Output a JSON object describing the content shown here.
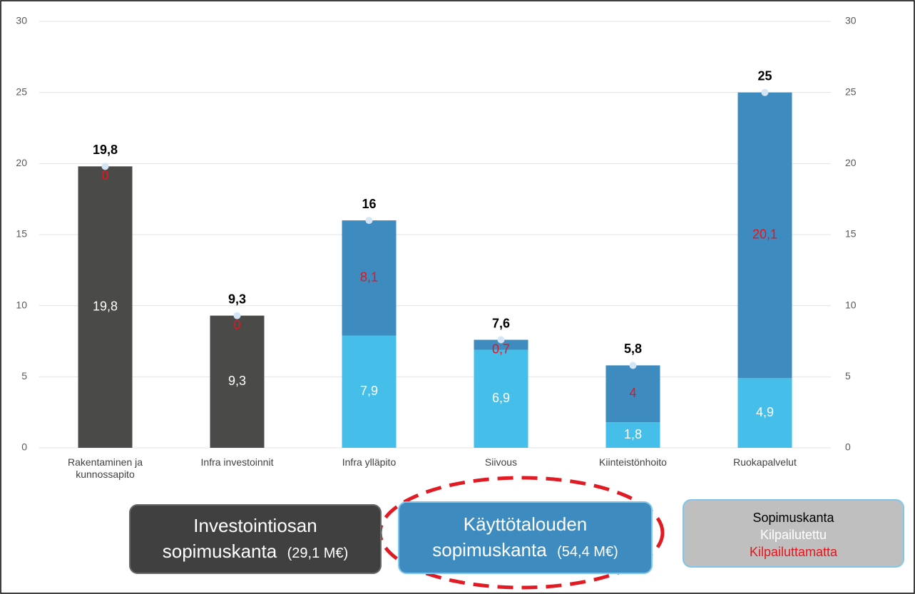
{
  "chart_data": {
    "type": "bar",
    "stacked": true,
    "categories": [
      "Rakentaminen ja kunnossapito",
      "Infra investoinnit",
      "Infra ylläpito",
      "Siivous",
      "Kiinteistönhoito",
      "Ruokapalvelut"
    ],
    "series": [
      {
        "name": "Kilpailutettu",
        "label_color": "#ffffff",
        "colors": [
          "#4a4a48",
          "#4a4a48",
          "#45bfea",
          "#45bfea",
          "#45bfea",
          "#45bfea"
        ],
        "values": [
          19.8,
          9.3,
          7.9,
          6.9,
          1.8,
          4.9
        ],
        "value_labels": [
          "19,8",
          "9,3",
          "7,9",
          "6,9",
          "1,8",
          "4,9"
        ]
      },
      {
        "name": "Kilpailuttamatta",
        "label_color": "#e8141c",
        "colors": [
          "#4a4a48",
          "#4a4a48",
          "#3d8bbf",
          "#3d8bbf",
          "#3d8bbf",
          "#3d8bbf"
        ],
        "values": [
          0,
          0,
          8.1,
          0.7,
          4,
          20.1
        ],
        "value_labels": [
          "0",
          "0",
          "8,1",
          "0,7",
          "4",
          "20,1"
        ]
      },
      {
        "name": "Sopimuskanta",
        "type": "marker",
        "label_color": "#000000",
        "color": "#d4e5f6",
        "values": [
          19.8,
          9.3,
          16,
          7.6,
          5.8,
          25
        ],
        "value_labels": [
          "19,8",
          "9,3",
          "16",
          "7,6",
          "5,8",
          "25"
        ]
      }
    ],
    "ylim": [
      0,
      30
    ],
    "yticks": [
      0,
      5,
      10,
      15,
      20,
      25,
      30
    ],
    "y2lim": [
      0,
      30
    ],
    "y2ticks": [
      0,
      5,
      10,
      15,
      20,
      25,
      30
    ],
    "grid": true,
    "annotations": [
      {
        "line1": "Investointiosan",
        "line2": "sopimuskanta",
        "note": "(29,1 M€)"
      },
      {
        "line1": "Käyttötalouden",
        "line2": "sopimuskanta",
        "note": "(54,4 M€)"
      }
    ]
  }
}
